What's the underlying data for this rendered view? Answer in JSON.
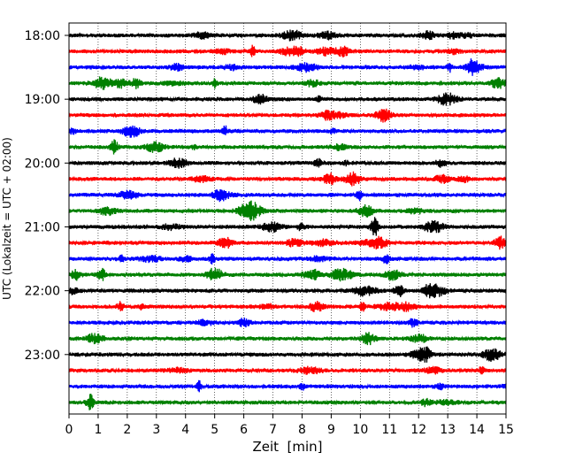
{
  "chart_data": {
    "type": "line",
    "title": "",
    "xlabel": "Zeit  [min]",
    "ylabel": "UTC (Lokalzeit = UTC + 02:00)",
    "xlim": [
      0,
      15
    ],
    "x_ticks": [
      "0",
      "1",
      "2",
      "3",
      "4",
      "5",
      "6",
      "7",
      "8",
      "9",
      "10",
      "11",
      "12",
      "13",
      "14",
      "15"
    ],
    "y_ticks": [
      "18:00",
      "19:00",
      "20:00",
      "21:00",
      "22:00",
      "23:00"
    ],
    "grid_x": true,
    "grid_y": false,
    "trace_colors": [
      "#000000",
      "#ff0000",
      "#0000ff",
      "#008000"
    ],
    "traces": [
      {
        "start": "18:00",
        "color": "#000000"
      },
      {
        "start": "18:15",
        "color": "#ff0000"
      },
      {
        "start": "18:30",
        "color": "#0000ff"
      },
      {
        "start": "18:45",
        "color": "#008000"
      },
      {
        "start": "19:00",
        "color": "#000000"
      },
      {
        "start": "19:15",
        "color": "#ff0000"
      },
      {
        "start": "19:30",
        "color": "#0000ff"
      },
      {
        "start": "19:45",
        "color": "#008000"
      },
      {
        "start": "20:00",
        "color": "#000000"
      },
      {
        "start": "20:15",
        "color": "#ff0000"
      },
      {
        "start": "20:30",
        "color": "#0000ff"
      },
      {
        "start": "20:45",
        "color": "#008000"
      },
      {
        "start": "21:00",
        "color": "#000000"
      },
      {
        "start": "21:15",
        "color": "#ff0000"
      },
      {
        "start": "21:30",
        "color": "#0000ff"
      },
      {
        "start": "21:45",
        "color": "#008000"
      },
      {
        "start": "22:00",
        "color": "#000000"
      },
      {
        "start": "22:15",
        "color": "#ff0000"
      },
      {
        "start": "22:30",
        "color": "#0000ff"
      },
      {
        "start": "22:45",
        "color": "#008000"
      },
      {
        "start": "23:00",
        "color": "#000000"
      },
      {
        "start": "23:15",
        "color": "#ff0000"
      },
      {
        "start": "23:30",
        "color": "#0000ff"
      },
      {
        "start": "23:45",
        "color": "#008000"
      }
    ]
  }
}
